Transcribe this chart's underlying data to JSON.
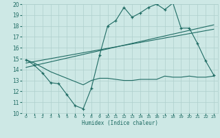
{
  "xlabel": "Humidex (Indice chaleur)",
  "xlim": [
    -0.5,
    23.5
  ],
  "ylim": [
    10,
    20
  ],
  "xticks": [
    0,
    1,
    2,
    3,
    4,
    5,
    6,
    7,
    8,
    9,
    10,
    11,
    12,
    13,
    14,
    15,
    16,
    17,
    18,
    19,
    20,
    21,
    22,
    23
  ],
  "yticks": [
    10,
    11,
    12,
    13,
    14,
    15,
    16,
    17,
    18,
    19,
    20
  ],
  "bg_color": "#cde8e5",
  "line_color": "#1e6b63",
  "grid_color": "#aecfcc",
  "line1_x": [
    0,
    1,
    2,
    3,
    4,
    5,
    6,
    7,
    8,
    9,
    10,
    11,
    12,
    13,
    14,
    15,
    16,
    17,
    18,
    19,
    20,
    21,
    22,
    23
  ],
  "line1_y": [
    14.9,
    14.4,
    13.7,
    12.8,
    12.7,
    11.7,
    10.7,
    10.4,
    12.3,
    15.3,
    18.0,
    18.5,
    19.7,
    18.8,
    19.2,
    19.7,
    20.0,
    19.5,
    20.1,
    17.8,
    17.8,
    16.4,
    14.8,
    13.5
  ],
  "line2_x": [
    0,
    1,
    2,
    3,
    4,
    5,
    6,
    7,
    8,
    9,
    10,
    11,
    12,
    13,
    14,
    15,
    16,
    17,
    18,
    19,
    20,
    21,
    22,
    23
  ],
  "line2_y": [
    14.9,
    14.6,
    14.2,
    13.8,
    13.5,
    13.2,
    12.9,
    12.6,
    13.0,
    13.2,
    13.2,
    13.1,
    13.0,
    13.0,
    13.1,
    13.1,
    13.1,
    13.4,
    13.3,
    13.3,
    13.4,
    13.3,
    13.3,
    13.4
  ],
  "line3_x": [
    0,
    23
  ],
  "line3_y": [
    14.2,
    18.1
  ],
  "line4_x": [
    0,
    23
  ],
  "line4_y": [
    14.6,
    17.7
  ]
}
